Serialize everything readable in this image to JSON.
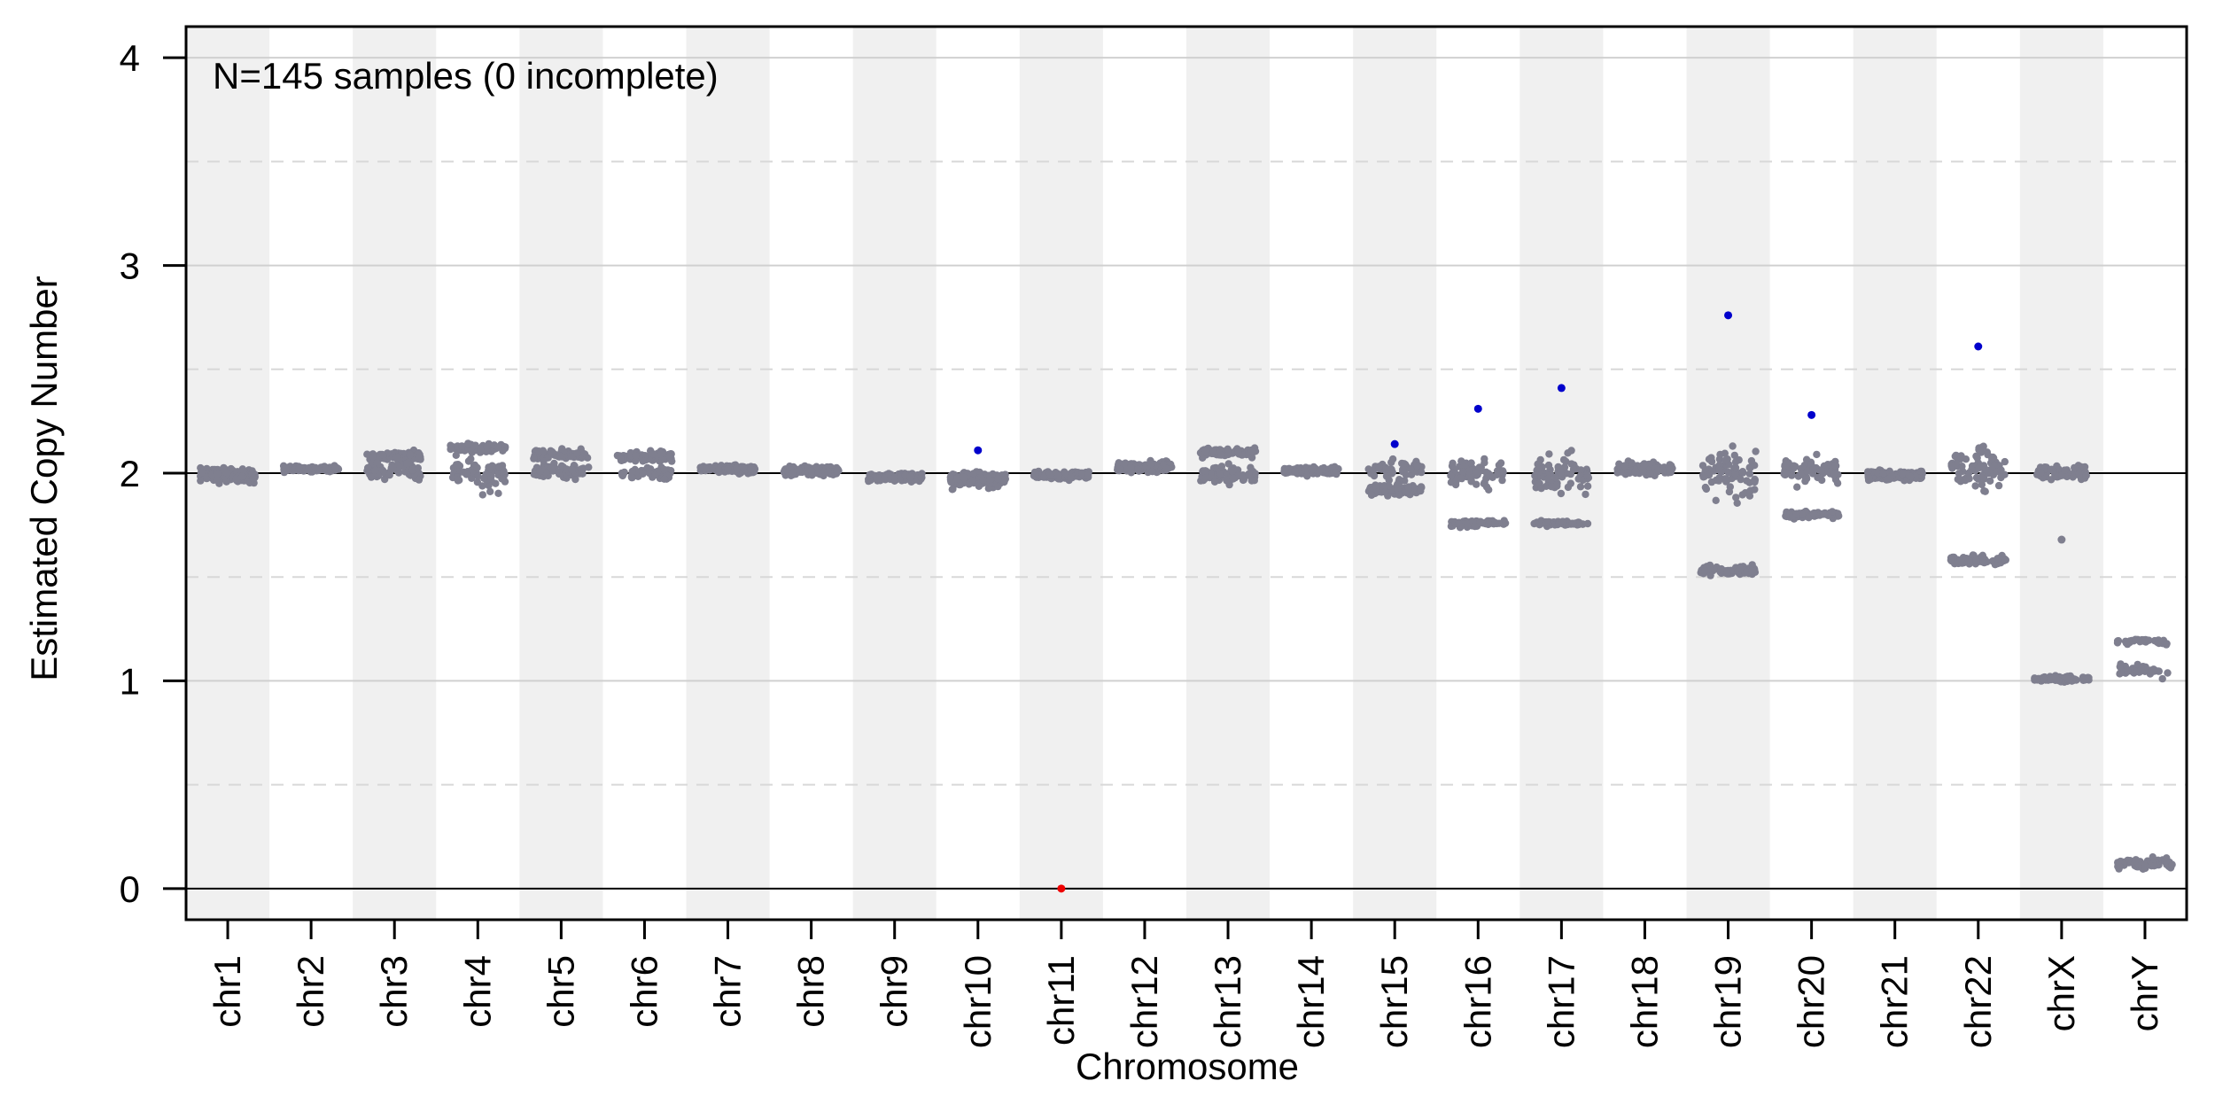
{
  "chart_data": {
    "type": "scatter",
    "xlabel": "Chromosome",
    "ylabel": "Estimated Copy Number",
    "annotation": "N=145 samples (0 incomplete)",
    "categories": [
      "chr1",
      "chr2",
      "chr3",
      "chr4",
      "chr5",
      "chr6",
      "chr7",
      "chr8",
      "chr9",
      "chr10",
      "chr11",
      "chr12",
      "chr13",
      "chr14",
      "chr15",
      "chr16",
      "chr17",
      "chr18",
      "chr19",
      "chr20",
      "chr21",
      "chr22",
      "chrX",
      "chrY"
    ],
    "ylim": [
      -0.15,
      4.15
    ],
    "yticks": [
      "0",
      "1",
      "2",
      "3",
      "4"
    ],
    "minor_gridlines": [
      0.5,
      1.5,
      2.5,
      3.5
    ],
    "reference_lines": [
      0,
      2
    ],
    "alternating_bands": true,
    "colors": {
      "points": "#7f7f8f",
      "high_outlier": "#0000cc",
      "low_outlier": "#ee0000",
      "band": "#f0f0f0",
      "grid": "#d0d0d0",
      "ref_line": "#000000"
    },
    "clusters": [
      {
        "chromosome": "chr1",
        "groups": [
          {
            "center": 1.99,
            "spread": 0.03,
            "n": 145
          }
        ]
      },
      {
        "chromosome": "chr2",
        "groups": [
          {
            "center": 2.02,
            "spread": 0.01,
            "n": 145
          }
        ]
      },
      {
        "chromosome": "chr3",
        "groups": [
          {
            "center": 2.08,
            "spread": 0.02,
            "n": 75
          },
          {
            "center": 2.01,
            "spread": 0.03,
            "n": 70
          }
        ]
      },
      {
        "chromosome": "chr4",
        "groups": [
          {
            "center": 2.12,
            "spread": 0.02,
            "n": 75
          },
          {
            "center": 1.99,
            "spread": 0.06,
            "n": 70
          }
        ]
      },
      {
        "chromosome": "chr5",
        "groups": [
          {
            "center": 2.09,
            "spread": 0.02,
            "n": 75
          },
          {
            "center": 2.01,
            "spread": 0.03,
            "n": 70
          }
        ]
      },
      {
        "chromosome": "chr6",
        "groups": [
          {
            "center": 2.08,
            "spread": 0.02,
            "n": 90
          },
          {
            "center": 2.0,
            "spread": 0.03,
            "n": 55
          }
        ]
      },
      {
        "chromosome": "chr7",
        "groups": [
          {
            "center": 2.02,
            "spread": 0.015,
            "n": 145
          }
        ]
      },
      {
        "chromosome": "chr8",
        "groups": [
          {
            "center": 2.01,
            "spread": 0.02,
            "n": 145
          }
        ]
      },
      {
        "chromosome": "chr9",
        "groups": [
          {
            "center": 1.98,
            "spread": 0.015,
            "n": 145
          }
        ]
      },
      {
        "chromosome": "chr10",
        "groups": [
          {
            "center": 1.97,
            "spread": 0.03,
            "n": 145
          }
        ]
      },
      {
        "chromosome": "chr11",
        "groups": [
          {
            "center": 1.99,
            "spread": 0.015,
            "n": 144
          }
        ]
      },
      {
        "chromosome": "chr12",
        "groups": [
          {
            "center": 2.03,
            "spread": 0.02,
            "n": 145
          }
        ]
      },
      {
        "chromosome": "chr13",
        "groups": [
          {
            "center": 2.1,
            "spread": 0.02,
            "n": 80
          },
          {
            "center": 1.99,
            "spread": 0.04,
            "n": 65
          }
        ]
      },
      {
        "chromosome": "chr14",
        "groups": [
          {
            "center": 2.01,
            "spread": 0.015,
            "n": 145
          }
        ]
      },
      {
        "chromosome": "chr15",
        "groups": [
          {
            "center": 2.01,
            "spread": 0.04,
            "n": 55
          },
          {
            "center": 1.92,
            "spread": 0.025,
            "n": 89
          }
        ]
      },
      {
        "chromosome": "chr16",
        "groups": [
          {
            "center": 2.0,
            "spread": 0.05,
            "n": 75
          },
          {
            "center": 1.76,
            "spread": 0.015,
            "n": 69
          }
        ]
      },
      {
        "chromosome": "chr17",
        "groups": [
          {
            "center": 2.0,
            "spread": 0.07,
            "n": 75
          },
          {
            "center": 1.76,
            "spread": 0.01,
            "n": 69
          }
        ]
      },
      {
        "chromosome": "chr18",
        "groups": [
          {
            "center": 2.02,
            "spread": 0.025,
            "n": 145
          }
        ]
      },
      {
        "chromosome": "chr19",
        "groups": [
          {
            "center": 2.0,
            "spread": 0.09,
            "n": 75
          },
          {
            "center": 1.53,
            "spread": 0.02,
            "n": 69
          }
        ]
      },
      {
        "chromosome": "chr20",
        "groups": [
          {
            "center": 2.01,
            "spread": 0.05,
            "n": 75
          },
          {
            "center": 1.8,
            "spread": 0.015,
            "n": 69
          }
        ]
      },
      {
        "chromosome": "chr21",
        "groups": [
          {
            "center": 1.99,
            "spread": 0.02,
            "n": 145
          }
        ]
      },
      {
        "chromosome": "chr22",
        "groups": [
          {
            "center": 2.02,
            "spread": 0.08,
            "n": 75
          },
          {
            "center": 1.58,
            "spread": 0.02,
            "n": 69
          }
        ]
      },
      {
        "chromosome": "chrX",
        "groups": [
          {
            "center": 2.0,
            "spread": 0.03,
            "n": 73
          },
          {
            "center": 1.01,
            "spread": 0.015,
            "n": 71
          }
        ]
      },
      {
        "chromosome": "chrY",
        "groups": [
          {
            "center": 1.19,
            "spread": 0.01,
            "n": 35
          },
          {
            "center": 1.05,
            "spread": 0.025,
            "n": 36
          },
          {
            "center": 0.12,
            "spread": 0.02,
            "n": 74
          }
        ]
      }
    ],
    "outliers": [
      {
        "chromosome": "chr10",
        "y": 2.11,
        "kind": "high"
      },
      {
        "chromosome": "chr11",
        "y": 0.0,
        "kind": "low"
      },
      {
        "chromosome": "chr15",
        "y": 2.14,
        "kind": "high"
      },
      {
        "chromosome": "chr16",
        "y": 2.31,
        "kind": "high"
      },
      {
        "chromosome": "chr17",
        "y": 2.41,
        "kind": "high"
      },
      {
        "chromosome": "chr19",
        "y": 2.76,
        "kind": "high"
      },
      {
        "chromosome": "chr20",
        "y": 2.28,
        "kind": "high"
      },
      {
        "chromosome": "chr22",
        "y": 2.61,
        "kind": "high"
      },
      {
        "chromosome": "chrX",
        "y": 1.68,
        "kind": "normal"
      }
    ]
  }
}
